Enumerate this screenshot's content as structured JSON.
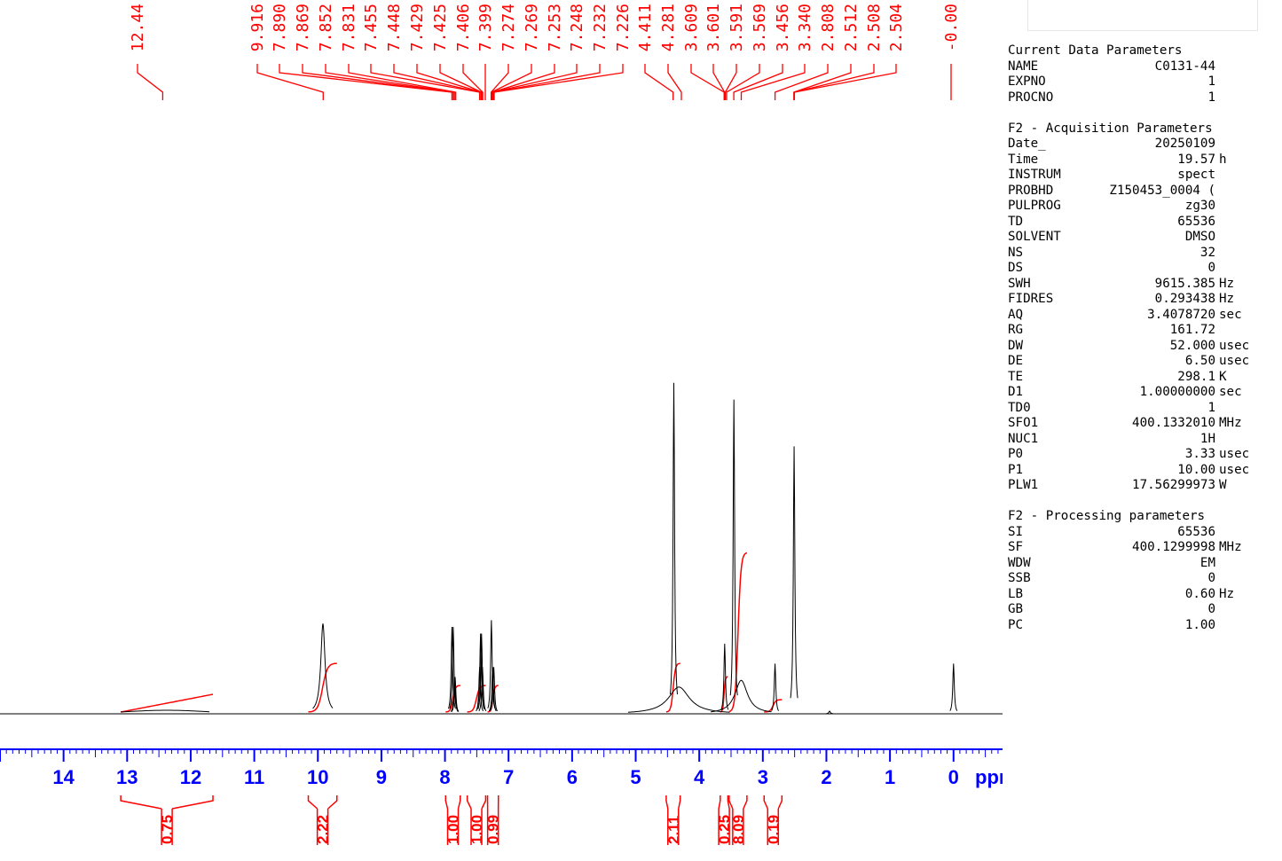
{
  "chart_data": {
    "type": "nmr-spectrum",
    "x_unit_label": "ppm",
    "x_axis_ticks": [
      "14",
      "13",
      "12",
      "11",
      "10",
      "9",
      "8",
      "7",
      "6",
      "5",
      "4",
      "3",
      "2",
      "1",
      "0"
    ],
    "xlim": [
      15.0,
      -1.05
    ],
    "peak_labels": [
      "12.44",
      "9.916",
      "7.890",
      "7.869",
      "7.852",
      "7.831",
      "7.455",
      "7.448",
      "7.429",
      "7.425",
      "7.406",
      "7.399",
      "7.274",
      "7.269",
      "7.253",
      "7.248",
      "7.232",
      "7.226",
      "4.411",
      "4.281",
      "3.609",
      "3.601",
      "3.591",
      "3.569",
      "3.456",
      "3.340",
      "2.808",
      "2.512",
      "2.508",
      "2.504",
      "-0.00"
    ],
    "peak_positions_ppm": [
      12.44,
      9.916,
      7.89,
      7.869,
      7.852,
      7.831,
      7.455,
      7.448,
      7.429,
      7.425,
      7.406,
      7.399,
      7.274,
      7.269,
      7.253,
      7.248,
      7.232,
      7.226,
      4.411,
      4.281,
      3.609,
      3.601,
      3.591,
      3.569,
      3.456,
      3.34,
      2.808,
      2.512,
      2.508,
      2.504,
      0.0
    ],
    "peaks": [
      {
        "ppm": 9.92,
        "height": 0.27,
        "width": 0.04
      },
      {
        "ppm": 7.89,
        "height": 0.26,
        "width": 0.005
      },
      {
        "ppm": 7.87,
        "height": 0.26,
        "width": 0.005
      },
      {
        "ppm": 7.85,
        "height": 0.11,
        "width": 0.004
      },
      {
        "ppm": 7.84,
        "height": 0.11,
        "width": 0.004
      },
      {
        "ppm": 7.455,
        "height": 0.14,
        "width": 0.004
      },
      {
        "ppm": 7.44,
        "height": 0.24,
        "width": 0.005
      },
      {
        "ppm": 7.425,
        "height": 0.24,
        "width": 0.005
      },
      {
        "ppm": 7.41,
        "height": 0.14,
        "width": 0.004
      },
      {
        "ppm": 7.27,
        "height": 0.28,
        "width": 0.005
      },
      {
        "ppm": 7.25,
        "height": 0.14,
        "width": 0.004
      },
      {
        "ppm": 7.232,
        "height": 0.14,
        "width": 0.004
      },
      {
        "ppm": 4.4,
        "height": 0.99,
        "width": 0.004
      },
      {
        "ppm": 4.32,
        "height": 0.08,
        "width": 0.2
      },
      {
        "ppm": 3.6,
        "height": 0.21,
        "width": 0.004
      },
      {
        "ppm": 3.455,
        "height": 0.94,
        "width": 0.008
      },
      {
        "ppm": 3.34,
        "height": 0.1,
        "width": 0.12
      },
      {
        "ppm": 2.808,
        "height": 0.15,
        "width": 0.004
      },
      {
        "ppm": 2.508,
        "height": 0.8,
        "width": 0.005
      },
      {
        "ppm": 1.95,
        "height": 0.008,
        "width": 0.004
      },
      {
        "ppm": 0.0,
        "height": 0.15,
        "width": 0.004
      }
    ],
    "integrals": [
      {
        "label": "0.75",
        "from": 13.1,
        "to": 11.65
      },
      {
        "label": "2.22",
        "from": 10.15,
        "to": 9.7
      },
      {
        "label": "1.00",
        "from": 7.99,
        "to": 7.76
      },
      {
        "label": "1.00",
        "from": 7.65,
        "to": 7.36
      },
      {
        "label": "0.99",
        "from": 7.33,
        "to": 7.16
      },
      {
        "label": "2.11",
        "from": 4.52,
        "to": 4.3
      },
      {
        "label": "0.25",
        "from": 3.67,
        "to": 3.55
      },
      {
        "label": "8.09",
        "from": 3.53,
        "to": 3.25
      },
      {
        "label": "0.19",
        "from": 2.98,
        "to": 2.7
      }
    ],
    "grid": false,
    "colors": {
      "spectrum": "#000000",
      "annotations": "#ff0000",
      "axis": "#0000ff"
    }
  },
  "params": {
    "title": "Current Data Parameters",
    "rows_top": [
      {
        "k": "NAME",
        "v": "C0131-44",
        "u": ""
      },
      {
        "k": "EXPNO",
        "v": "1",
        "u": ""
      },
      {
        "k": "PROCNO",
        "v": "1",
        "u": ""
      }
    ],
    "acq_title": "F2 - Acquisition Parameters",
    "rows_acq": [
      {
        "k": "Date_",
        "v": "20250109",
        "u": ""
      },
      {
        "k": "Time",
        "v": "19.57",
        "u": "h"
      },
      {
        "k": "INSTRUM",
        "v": "spect",
        "u": ""
      },
      {
        "k": "PROBHD",
        "v": "Z150453_0004 (",
        "u": ""
      },
      {
        "k": "PULPROG",
        "v": "zg30",
        "u": ""
      },
      {
        "k": "TD",
        "v": "65536",
        "u": ""
      },
      {
        "k": "SOLVENT",
        "v": "DMSO",
        "u": ""
      },
      {
        "k": "NS",
        "v": "32",
        "u": ""
      },
      {
        "k": "DS",
        "v": "0",
        "u": ""
      },
      {
        "k": "SWH",
        "v": "9615.385",
        "u": "Hz"
      },
      {
        "k": "FIDRES",
        "v": "0.293438",
        "u": "Hz"
      },
      {
        "k": "AQ",
        "v": "3.4078720",
        "u": "sec"
      },
      {
        "k": "RG",
        "v": "161.72",
        "u": ""
      },
      {
        "k": "DW",
        "v": "52.000",
        "u": "usec"
      },
      {
        "k": "DE",
        "v": "6.50",
        "u": "usec"
      },
      {
        "k": "TE",
        "v": "298.1",
        "u": "K"
      },
      {
        "k": "D1",
        "v": "1.00000000",
        "u": "sec"
      },
      {
        "k": "TD0",
        "v": "1",
        "u": ""
      },
      {
        "k": "SFO1",
        "v": "400.1332010",
        "u": "MHz"
      },
      {
        "k": "NUC1",
        "v": "1H",
        "u": ""
      },
      {
        "k": "P0",
        "v": "3.33",
        "u": "usec"
      },
      {
        "k": "P1",
        "v": "10.00",
        "u": "usec"
      },
      {
        "k": "PLW1",
        "v": "17.56299973",
        "u": "W"
      }
    ],
    "proc_title": "F2 - Processing parameters",
    "rows_proc": [
      {
        "k": "SI",
        "v": "65536",
        "u": ""
      },
      {
        "k": "SF",
        "v": "400.1299998",
        "u": "MHz"
      },
      {
        "k": "WDW",
        "v": "EM",
        "u": ""
      },
      {
        "k": "SSB",
        "v": "0",
        "u": ""
      },
      {
        "k": "LB",
        "v": "0.60",
        "u": "Hz"
      },
      {
        "k": "GB",
        "v": "0",
        "u": ""
      },
      {
        "k": "PC",
        "v": "1.00",
        "u": ""
      }
    ]
  }
}
